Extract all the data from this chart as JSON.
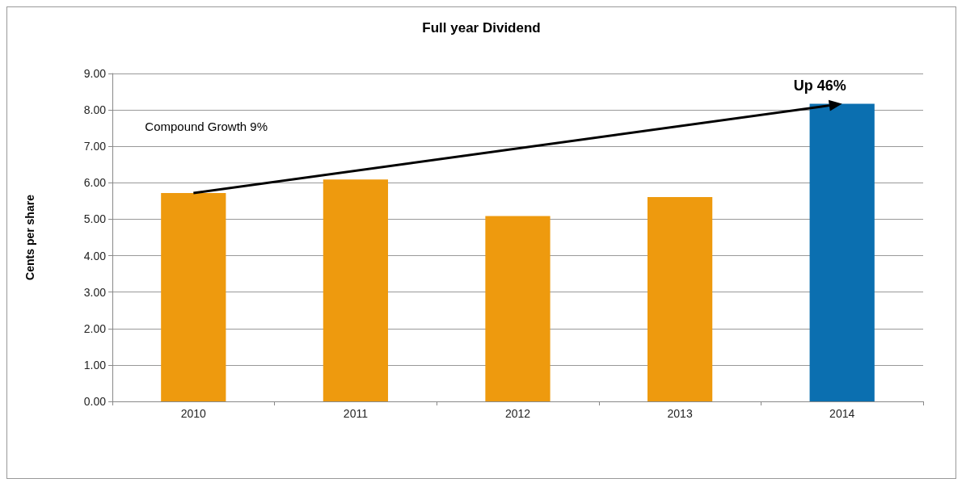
{
  "chart_data": {
    "type": "bar",
    "title": "Full year Dividend",
    "ylabel": "Cents per share",
    "categories": [
      "2010",
      "2011",
      "2012",
      "2013",
      "2014"
    ],
    "values": [
      5.72,
      6.09,
      5.09,
      5.61,
      8.17
    ],
    "colors": [
      "#ee9a0e",
      "#ee9a0e",
      "#ee9a0e",
      "#ee9a0e",
      "#0b6fb0"
    ],
    "ylim": [
      0,
      9
    ],
    "yticks": [
      {
        "value": 0,
        "label": "0.00"
      },
      {
        "value": 1,
        "label": "1.00"
      },
      {
        "value": 2,
        "label": "2.00"
      },
      {
        "value": 3,
        "label": "3.00"
      },
      {
        "value": 4,
        "label": "4.00"
      },
      {
        "value": 5,
        "label": "5.00"
      },
      {
        "value": 6,
        "label": "6.00"
      },
      {
        "value": 7,
        "label": "7.00"
      },
      {
        "value": 8,
        "label": "8.00"
      },
      {
        "value": 9,
        "label": "9.00"
      }
    ],
    "grid": "y",
    "annotations": [
      "Compound Growth 9%",
      "Up 46%"
    ]
  }
}
